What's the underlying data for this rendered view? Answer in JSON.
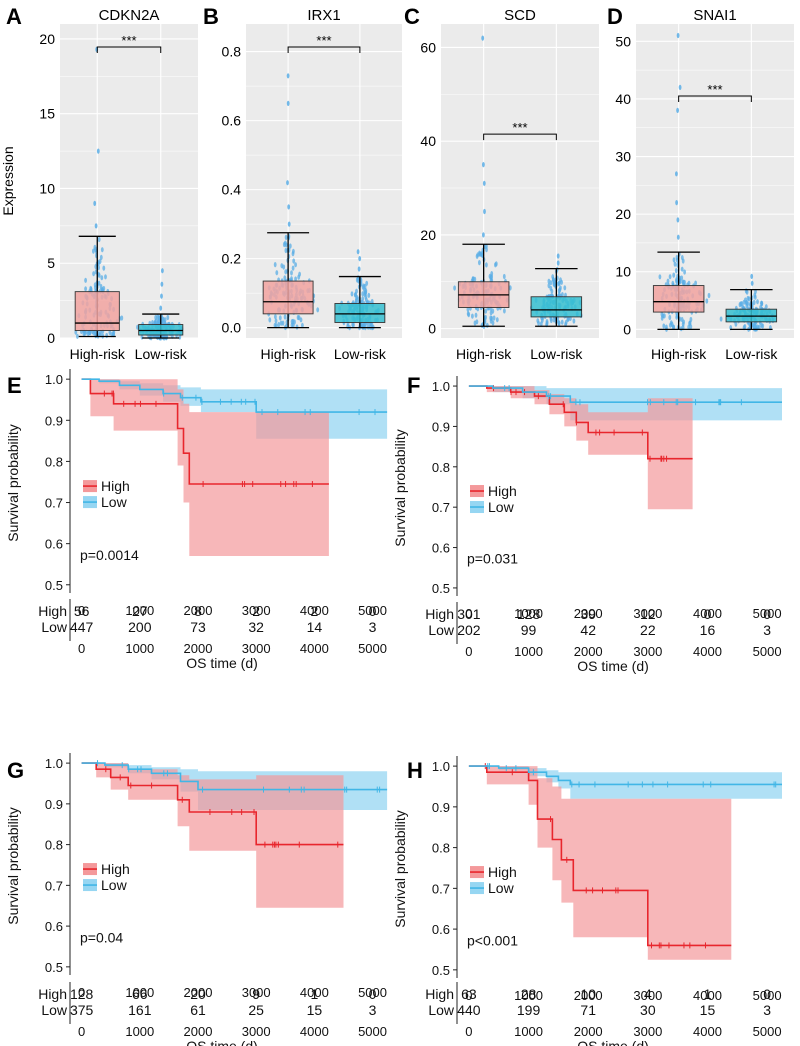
{
  "colors": {
    "high": "#e8262d",
    "low": "#41b6e6",
    "high_fill": "#f4999b",
    "low_fill": "#96d6f2",
    "box_high": "#f2a3a0",
    "box_low": "#36bfd1",
    "panel_bg": "#ebebeb"
  },
  "chart_data": [
    {
      "panel": "A",
      "type": "box",
      "title": "CDKN2A",
      "ylabel": "Expression",
      "xlabel": "",
      "categories": [
        "High-risk",
        "Low-risk"
      ],
      "ylim": [
        0,
        21
      ],
      "yticks": [
        0,
        5,
        10,
        15,
        20
      ],
      "significance": "***",
      "boxes": [
        {
          "name": "High-risk",
          "min": 0.1,
          "q1": 0.5,
          "median": 1.0,
          "q3": 3.1,
          "max": 6.8,
          "outliers": [
            7.5,
            9.0,
            12.5,
            19.3
          ]
        },
        {
          "name": "Low-risk",
          "min": 0.0,
          "q1": 0.2,
          "median": 0.5,
          "q3": 0.9,
          "max": 1.6,
          "outliers": [
            2.0,
            2.8,
            3.6,
            4.5
          ]
        }
      ]
    },
    {
      "panel": "B",
      "type": "box",
      "title": "IRX1",
      "ylabel": "",
      "xlabel": "",
      "categories": [
        "High-risk",
        "Low-risk"
      ],
      "ylim": [
        -0.03,
        0.88
      ],
      "yticks": [
        0.0,
        0.2,
        0.4,
        0.6,
        0.8
      ],
      "significance": "***",
      "boxes": [
        {
          "name": "High-risk",
          "min": 0.0,
          "q1": 0.04,
          "median": 0.075,
          "q3": 0.135,
          "max": 0.275,
          "outliers": [
            0.3,
            0.35,
            0.42,
            0.65,
            0.73
          ]
        },
        {
          "name": "Low-risk",
          "min": 0.0,
          "q1": 0.015,
          "median": 0.04,
          "q3": 0.07,
          "max": 0.148,
          "outliers": [
            0.17,
            0.2,
            0.22
          ]
        }
      ]
    },
    {
      "panel": "C",
      "type": "box",
      "title": "SCD",
      "ylabel": "",
      "xlabel": "",
      "categories": [
        "High-risk",
        "Low-risk"
      ],
      "ylim": [
        -2,
        65
      ],
      "yticks": [
        0,
        20,
        40,
        60
      ],
      "significance": "***",
      "boxes": [
        {
          "name": "High-risk",
          "min": 0.5,
          "q1": 4.5,
          "median": 7.2,
          "q3": 10.0,
          "max": 18.0,
          "outliers": [
            20,
            25,
            31,
            35,
            62
          ]
        },
        {
          "name": "Low-risk",
          "min": 0.5,
          "q1": 2.5,
          "median": 4.0,
          "q3": 6.8,
          "max": 12.8,
          "outliers": [
            14.0,
            15.5
          ]
        }
      ]
    },
    {
      "panel": "D",
      "type": "box",
      "title": "SNAI1",
      "ylabel": "",
      "xlabel": "",
      "categories": [
        "High-risk",
        "Low-risk"
      ],
      "ylim": [
        -1.5,
        53
      ],
      "yticks": [
        0,
        10,
        20,
        30,
        40,
        50
      ],
      "significance": "***",
      "boxes": [
        {
          "name": "High-risk",
          "min": 0.0,
          "q1": 3.0,
          "median": 4.8,
          "q3": 7.6,
          "max": 13.4,
          "outliers": [
            16,
            19,
            22,
            27,
            38,
            42,
            51
          ]
        },
        {
          "name": "Low-risk",
          "min": 0.0,
          "q1": 1.3,
          "median": 2.3,
          "q3": 3.5,
          "max": 6.9,
          "outliers": [
            8.0,
            9.2
          ]
        }
      ]
    },
    {
      "panel": "E",
      "type": "line",
      "subtype": "kaplan-meier",
      "ylabel": "Survival probability",
      "xlabel": "OS time (d)",
      "xlim": [
        -200,
        5300
      ],
      "ylim": [
        0.48,
        1.015
      ],
      "xticks": [
        0,
        1000,
        2000,
        3000,
        4000,
        5000
      ],
      "yticks": [
        0.5,
        0.6,
        0.7,
        0.8,
        0.9,
        1.0
      ],
      "pvalue": "p=0.0014",
      "legend": [
        "High",
        "Low"
      ],
      "risk_table": {
        "times": [
          0,
          1000,
          2000,
          3000,
          4000,
          5000
        ],
        "rows": [
          {
            "label": "High",
            "values": [
              "56",
              "27",
              "8",
              "2",
              "2",
              "0"
            ]
          },
          {
            "label": "Low",
            "values": [
              "447",
              "200",
              "73",
              "32",
              "14",
              "3"
            ]
          }
        ]
      },
      "series": [
        {
          "name": "High",
          "end": 4250,
          "x": [
            0,
            150,
            550,
            1650,
            1750,
            1850,
            4250
          ],
          "y": [
            1.0,
            0.965,
            0.94,
            0.88,
            0.82,
            0.745,
            0.745
          ],
          "lower": [
            1.0,
            0.91,
            0.875,
            0.79,
            0.7,
            0.57,
            0.57
          ],
          "upper": [
            1.0,
            1.0,
            1.0,
            0.975,
            0.94,
            0.92,
            0.92
          ]
        },
        {
          "name": "Low",
          "end": 5250,
          "x": [
            0,
            300,
            650,
            1000,
            1400,
            1700,
            2050,
            3000,
            5250
          ],
          "y": [
            1.0,
            0.995,
            0.985,
            0.975,
            0.965,
            0.955,
            0.945,
            0.92,
            0.92
          ],
          "lower": [
            1.0,
            0.99,
            0.975,
            0.96,
            0.945,
            0.935,
            0.92,
            0.855,
            0.855
          ],
          "upper": [
            1.0,
            1.0,
            0.995,
            0.99,
            0.985,
            0.98,
            0.975,
            0.975,
            0.975
          ]
        }
      ]
    },
    {
      "panel": "F",
      "type": "line",
      "subtype": "kaplan-meier",
      "ylabel": "Survival probability",
      "xlabel": "OS time (d)",
      "xlim": [
        -200,
        5300
      ],
      "ylim": [
        0.48,
        1.015
      ],
      "xticks": [
        0,
        1000,
        2000,
        3000,
        4000,
        5000
      ],
      "yticks": [
        0.5,
        0.6,
        0.7,
        0.8,
        0.9,
        1.0
      ],
      "pvalue": "p=0.031",
      "legend": [
        "High",
        "Low"
      ],
      "risk_table": {
        "times": [
          0,
          1000,
          2000,
          3000,
          4000,
          5000
        ],
        "rows": [
          {
            "label": "High",
            "values": [
              "301",
              "128",
              "39",
              "12",
              "0",
              "0"
            ]
          },
          {
            "label": "Low",
            "values": [
              "202",
              "99",
              "42",
              "22",
              "16",
              "3"
            ]
          }
        ]
      },
      "series": [
        {
          "name": "High",
          "end": 3750,
          "x": [
            0,
            300,
            700,
            1100,
            1350,
            1600,
            1800,
            2000,
            3000,
            3750
          ],
          "y": [
            1.0,
            0.995,
            0.985,
            0.975,
            0.955,
            0.935,
            0.91,
            0.885,
            0.82,
            0.82
          ],
          "lower": [
            1.0,
            0.985,
            0.97,
            0.955,
            0.93,
            0.9,
            0.865,
            0.83,
            0.695,
            0.695
          ],
          "upper": [
            1.0,
            1.0,
            1.0,
            0.99,
            0.98,
            0.97,
            0.955,
            0.935,
            0.97,
            0.97
          ]
        },
        {
          "name": "Low",
          "end": 5250,
          "x": [
            0,
            400,
            900,
            1300,
            1700,
            5250
          ],
          "y": [
            1.0,
            0.995,
            0.985,
            0.975,
            0.96,
            0.96
          ],
          "lower": [
            1.0,
            0.985,
            0.97,
            0.955,
            0.915,
            0.915
          ],
          "upper": [
            1.0,
            1.0,
            1.0,
            0.995,
            0.995,
            0.995
          ]
        }
      ]
    },
    {
      "panel": "G",
      "type": "line",
      "subtype": "kaplan-meier",
      "ylabel": "Survival probability",
      "xlabel": "OS time (d)",
      "xlim": [
        -200,
        5300
      ],
      "ylim": [
        0.48,
        1.015
      ],
      "xticks": [
        0,
        1000,
        2000,
        3000,
        4000,
        5000
      ],
      "yticks": [
        0.5,
        0.6,
        0.7,
        0.8,
        0.9,
        1.0
      ],
      "pvalue": "p=0.04",
      "legend": [
        "High",
        "Low"
      ],
      "risk_table": {
        "times": [
          0,
          1000,
          2000,
          3000,
          4000,
          5000
        ],
        "rows": [
          {
            "label": "High",
            "values": [
              "128",
              "66",
              "20",
              "9",
              "1",
              "0"
            ]
          },
          {
            "label": "Low",
            "values": [
              "375",
              "161",
              "61",
              "25",
              "15",
              "3"
            ]
          }
        ]
      },
      "series": [
        {
          "name": "High",
          "end": 4500,
          "x": [
            0,
            250,
            500,
            800,
            1650,
            1850,
            3000,
            4500
          ],
          "y": [
            1.0,
            0.985,
            0.965,
            0.945,
            0.91,
            0.88,
            0.8,
            0.8
          ],
          "lower": [
            1.0,
            0.965,
            0.935,
            0.91,
            0.845,
            0.785,
            0.645,
            0.645
          ],
          "upper": [
            1.0,
            1.0,
            1.0,
            0.985,
            0.97,
            0.96,
            0.97,
            0.97
          ]
        },
        {
          "name": "Low",
          "end": 5250,
          "x": [
            0,
            400,
            800,
            1200,
            1700,
            2000,
            5250
          ],
          "y": [
            1.0,
            0.995,
            0.985,
            0.975,
            0.955,
            0.935,
            0.935
          ],
          "lower": [
            1.0,
            0.99,
            0.975,
            0.96,
            0.93,
            0.885,
            0.885
          ],
          "upper": [
            1.0,
            1.0,
            0.995,
            0.99,
            0.985,
            0.98,
            0.98
          ]
        }
      ]
    },
    {
      "panel": "H",
      "type": "line",
      "subtype": "kaplan-meier",
      "ylabel": "Survival probability",
      "xlabel": "OS time (d)",
      "xlim": [
        -200,
        5300
      ],
      "ylim": [
        0.48,
        1.015
      ],
      "xticks": [
        0,
        1000,
        2000,
        3000,
        4000,
        5000
      ],
      "yticks": [
        0.5,
        0.6,
        0.7,
        0.8,
        0.9,
        1.0
      ],
      "pvalue": "p<0.001",
      "legend": [
        "High",
        "Low"
      ],
      "risk_table": {
        "times": [
          0,
          1000,
          2000,
          3000,
          4000,
          5000
        ],
        "rows": [
          {
            "label": "High",
            "values": [
              "63",
              "28",
              "10",
              "4",
              "1",
              "0"
            ]
          },
          {
            "label": "Low",
            "values": [
              "440",
              "199",
              "71",
              "30",
              "15",
              "3"
            ]
          }
        ]
      },
      "series": [
        {
          "name": "High",
          "end": 4400,
          "x": [
            0,
            300,
            1000,
            1150,
            1400,
            1550,
            1750,
            3000,
            4400
          ],
          "y": [
            1.0,
            0.985,
            0.965,
            0.87,
            0.82,
            0.77,
            0.695,
            0.56,
            0.56
          ],
          "lower": [
            1.0,
            0.955,
            0.905,
            0.8,
            0.72,
            0.665,
            0.58,
            0.525,
            0.525
          ],
          "upper": [
            1.0,
            1.0,
            1.0,
            0.97,
            0.95,
            0.92,
            0.92,
            0.92,
            0.92
          ]
        },
        {
          "name": "Low",
          "end": 5250,
          "x": [
            0,
            500,
            1000,
            1300,
            1500,
            1700,
            5250
          ],
          "y": [
            1.0,
            0.995,
            0.985,
            0.975,
            0.965,
            0.955,
            0.955
          ],
          "lower": [
            1.0,
            0.99,
            0.975,
            0.96,
            0.945,
            0.92,
            0.92
          ],
          "upper": [
            1.0,
            1.0,
            0.995,
            0.99,
            0.985,
            0.985,
            0.985
          ]
        }
      ]
    }
  ]
}
